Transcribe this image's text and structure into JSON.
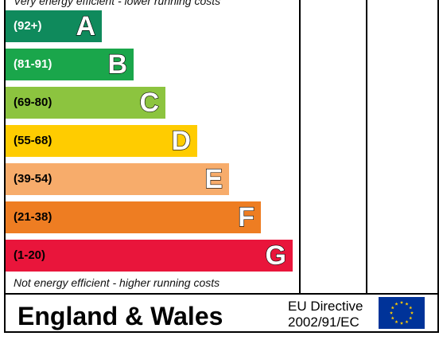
{
  "chart_data": {
    "type": "bar",
    "title": "",
    "top_note": "Very energy efficient - lower running costs",
    "bottom_note": "Not energy efficient - higher running costs",
    "categories": [
      "A",
      "B",
      "C",
      "D",
      "E",
      "F",
      "G"
    ],
    "ranges": [
      "(92+)",
      "(81-91)",
      "(69-80)",
      "(55-68)",
      "(39-54)",
      "(21-38)",
      "(1-20)"
    ],
    "values": [
      1,
      2,
      3,
      4,
      5,
      6,
      7
    ],
    "colors": [
      "#0f8a5c",
      "#1aa64b",
      "#8cc43f",
      "#ffcc00",
      "#f7ac6b",
      "#ee7d22",
      "#e9153b"
    ],
    "range_text_colors": [
      "#ffffff",
      "#ffffff",
      "#000000",
      "#000000",
      "#000000",
      "#000000",
      "#000000"
    ]
  },
  "footer": {
    "region": "England & Wales",
    "directive_line1": "EU Directive",
    "directive_line2": "2002/91/EC"
  }
}
